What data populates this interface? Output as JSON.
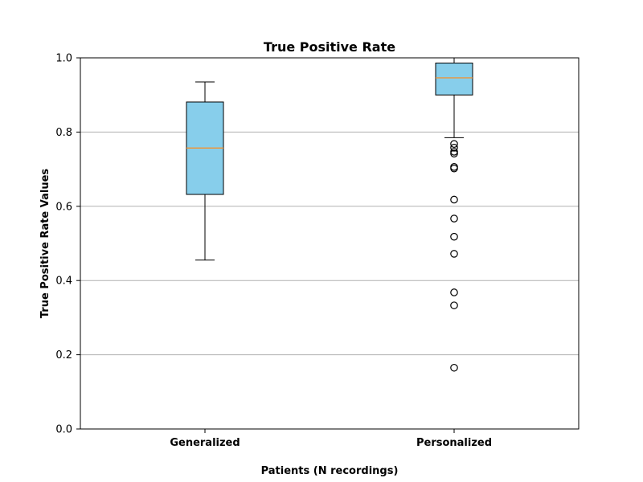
{
  "chart_data": {
    "type": "box",
    "title": "True Positive Rate",
    "xlabel": "Patients (N recordings)",
    "ylabel": "True Positive Rate Values",
    "ylim": [
      0.0,
      1.0
    ],
    "yticks": [
      "0.0",
      "0.2",
      "0.4",
      "0.6",
      "0.8",
      "1.0"
    ],
    "grid": "y",
    "categories": [
      "Generalized",
      "Personalized"
    ],
    "boxes": [
      {
        "category": "Generalized",
        "whisker_low": 0.455,
        "q1": 0.632,
        "median": 0.757,
        "q3": 0.881,
        "whisker_high": 0.935,
        "outliers": []
      },
      {
        "category": "Personalized",
        "whisker_low": 0.785,
        "q1": 0.9,
        "median": 0.946,
        "q3": 0.986,
        "whisker_high": 1.0,
        "outliers": [
          0.768,
          0.758,
          0.747,
          0.742,
          0.706,
          0.702,
          0.618,
          0.567,
          0.518,
          0.472,
          0.368,
          0.333,
          0.165
        ]
      }
    ],
    "colors": {
      "box_fill": "#87CEEB",
      "box_edge": "#000000",
      "median": "#FF8C1A",
      "grid": "#b0b0b0"
    }
  }
}
